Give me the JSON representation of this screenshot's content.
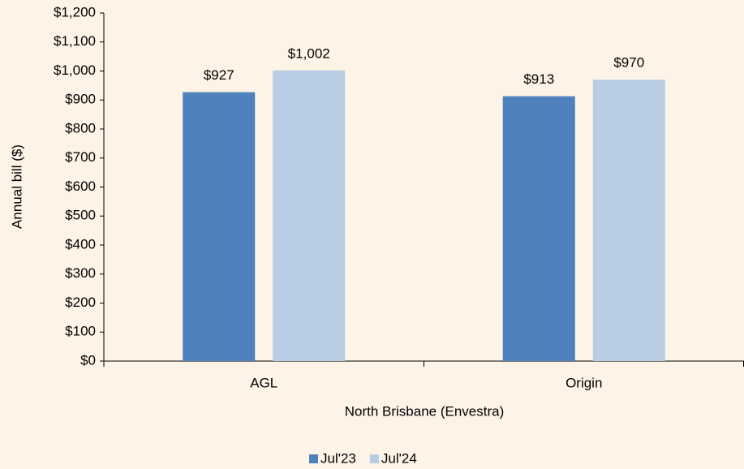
{
  "chart_data": {
    "type": "bar",
    "categories": [
      "AGL",
      "Origin"
    ],
    "series": [
      {
        "name": "Jul'23",
        "color": "#4f81bd",
        "values": [
          927,
          913
        ],
        "value_labels": [
          "$927",
          "$913"
        ]
      },
      {
        "name": "Jul'24",
        "color": "#b9cde5",
        "values": [
          1002,
          970
        ],
        "value_labels": [
          "$1,002",
          "$970"
        ]
      }
    ],
    "ylabel": "Annual bill ($)",
    "xlabel": "North Brisbane (Envestra)",
    "ylim": [
      0,
      1200
    ],
    "yticks": [
      {
        "value": 0,
        "label": "$0"
      },
      {
        "value": 100,
        "label": "$100"
      },
      {
        "value": 200,
        "label": "$200"
      },
      {
        "value": 300,
        "label": "$300"
      },
      {
        "value": 400,
        "label": "$400"
      },
      {
        "value": 500,
        "label": "$500"
      },
      {
        "value": 600,
        "label": "$600"
      },
      {
        "value": 700,
        "label": "$700"
      },
      {
        "value": 800,
        "label": "$800"
      },
      {
        "value": 900,
        "label": "$900"
      },
      {
        "value": 1000,
        "label": "$1,000"
      },
      {
        "value": 1100,
        "label": "$1,100"
      },
      {
        "value": 1200,
        "label": "$1,200"
      }
    ],
    "grid": false,
    "legend": "bottom"
  }
}
